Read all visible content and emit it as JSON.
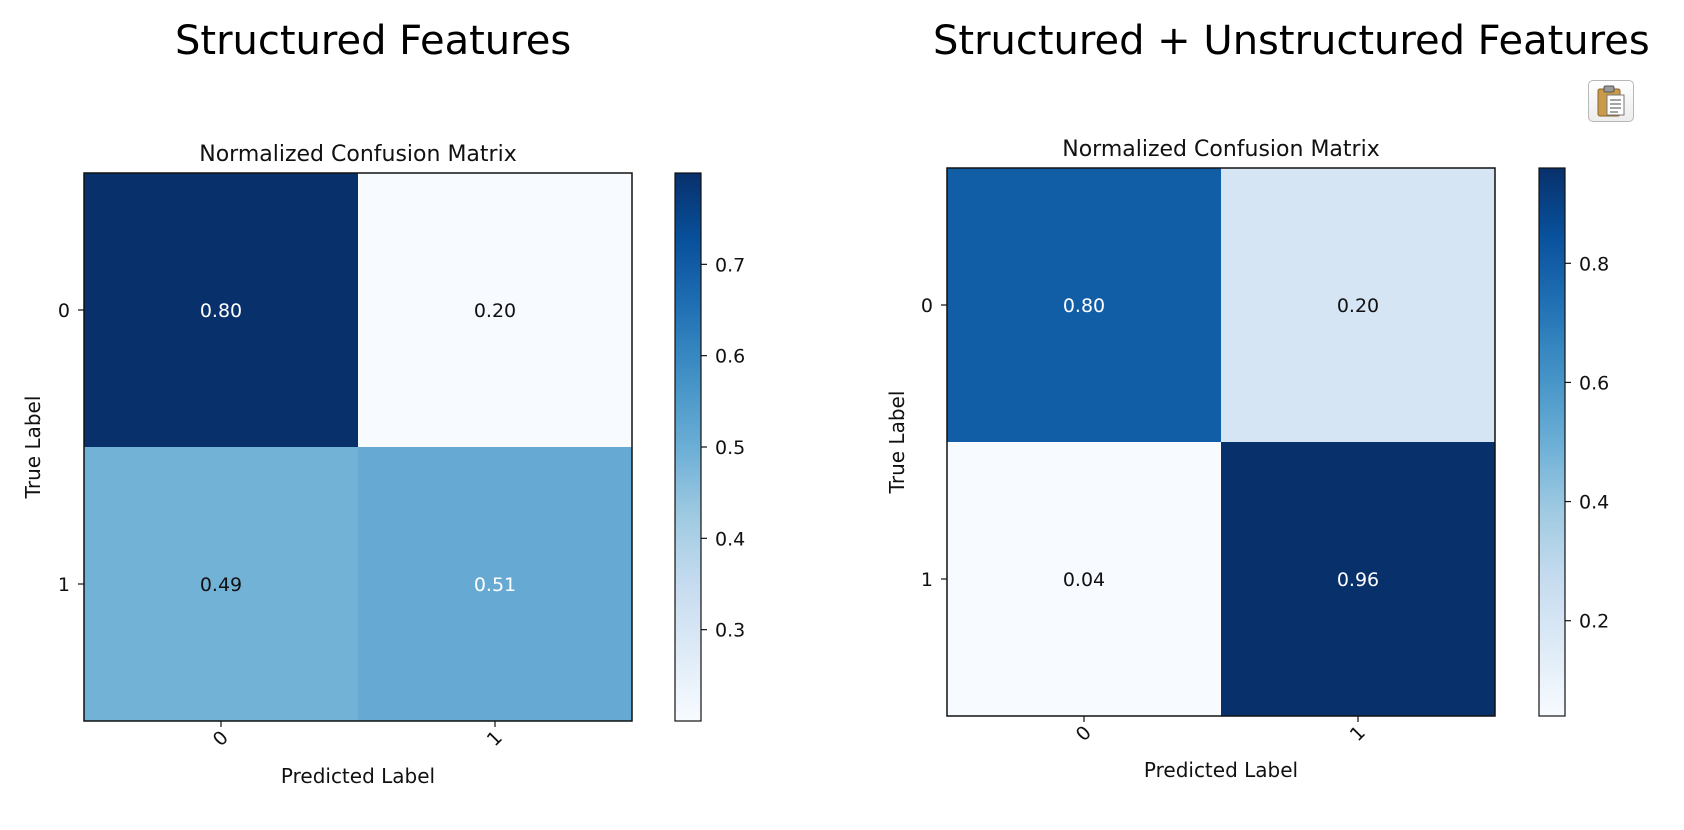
{
  "sections": [
    {
      "title": "Structured Features"
    },
    {
      "title": "Structured + Unstructured Features"
    }
  ],
  "toolbar": {
    "clipboard_icon": "clipboard-icon"
  },
  "chart_data": [
    {
      "type": "heatmap",
      "title": "Normalized Confusion Matrix",
      "xlabel": "Predicted Label",
      "ylabel": "True Label",
      "x_categories": [
        "0",
        "1"
      ],
      "y_categories": [
        "0",
        "1"
      ],
      "values": [
        [
          0.8,
          0.2
        ],
        [
          0.49,
          0.51
        ]
      ],
      "cell_labels": [
        [
          "0.80",
          "0.20"
        ],
        [
          "0.49",
          "0.51"
        ]
      ],
      "colormap": "Blues",
      "colorbar_range": [
        0.2,
        0.8
      ],
      "colorbar_ticks": [
        0.3,
        0.4,
        0.5,
        0.6,
        0.7
      ],
      "colorbar_tick_labels": [
        "0.3",
        "0.4",
        "0.5",
        "0.6",
        "0.7"
      ]
    },
    {
      "type": "heatmap",
      "title": "Normalized Confusion Matrix",
      "xlabel": "Predicted Label",
      "ylabel": "True Label",
      "x_categories": [
        "0",
        "1"
      ],
      "y_categories": [
        "0",
        "1"
      ],
      "values": [
        [
          0.8,
          0.2
        ],
        [
          0.04,
          0.96
        ]
      ],
      "cell_labels": [
        [
          "0.80",
          "0.20"
        ],
        [
          "0.04",
          "0.96"
        ]
      ],
      "colormap": "Blues",
      "colorbar_range": [
        0.04,
        0.96
      ],
      "colorbar_ticks": [
        0.2,
        0.4,
        0.6,
        0.8
      ],
      "colorbar_tick_labels": [
        "0.2",
        "0.4",
        "0.6",
        "0.8"
      ]
    }
  ]
}
